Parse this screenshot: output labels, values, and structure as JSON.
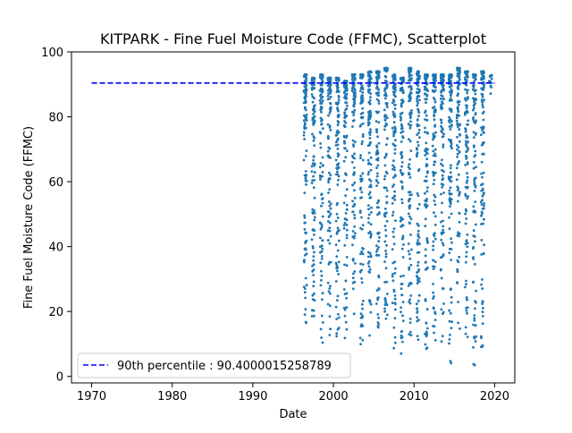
{
  "chart_data": {
    "type": "scatter",
    "title": "KITPARK - Fine Fuel Moisture Code (FFMC), Scatterplot",
    "xlabel": "Date",
    "ylabel": "Fine Fuel Moisture Code (FFMC)",
    "xlim": [
      1967.5,
      2022.5
    ],
    "ylim": [
      -2,
      100
    ],
    "xticks": [
      1970,
      1980,
      1990,
      2000,
      2010,
      2020
    ],
    "yticks": [
      0,
      20,
      40,
      60,
      80,
      100
    ],
    "point_color": "#1f77b4",
    "grid": false,
    "legend_position": "lower left",
    "reference_line": {
      "label": "90th percentile : 90.4000015258789",
      "value": 90.4000015258789,
      "x_range": [
        1970,
        2020
      ],
      "color": "#0000ff",
      "style": "dashed"
    },
    "series": [
      {
        "seasons": [
          1996,
          1997,
          1998,
          1999,
          2000,
          2001,
          2002,
          2003,
          2004,
          2005,
          2006,
          2007,
          2008,
          2009,
          2010,
          2011,
          2012,
          2013,
          2014,
          2015,
          2016,
          2017,
          2018,
          2019
        ],
        "min_y_by_season": [
          16,
          17,
          10,
          6,
          7,
          11,
          12,
          9,
          12,
          15,
          17,
          4,
          5,
          12,
          10,
          8,
          10,
          10,
          4,
          12,
          10,
          3,
          9,
          86
        ],
        "max_y_by_season": [
          93,
          92,
          93,
          92,
          92,
          91,
          93,
          93,
          94,
          94,
          95,
          93,
          92,
          95,
          94,
          93,
          93,
          93,
          93,
          95,
          94,
          93,
          94,
          93
        ],
        "points_per_season": 110
      }
    ]
  }
}
